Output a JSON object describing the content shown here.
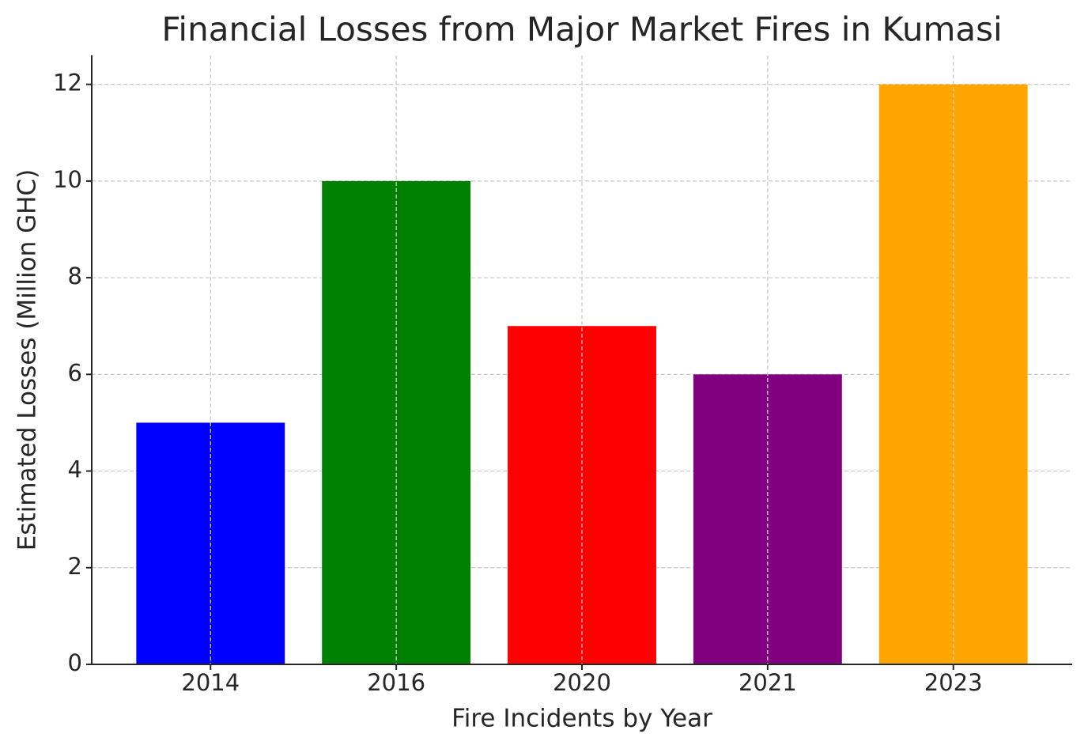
{
  "chart_data": {
    "type": "bar",
    "title": "Financial Losses from Major Market Fires in Kumasi",
    "x_label": "Fire Incidents by Year",
    "y_label": "Estimated Losses (Million GHC)",
    "categories": [
      "2014",
      "2016",
      "2020",
      "2021",
      "2023"
    ],
    "values": [
      5,
      10,
      7,
      6,
      12
    ],
    "colors": [
      "#0000ff",
      "#008000",
      "#ff0000",
      "#800080",
      "#ffa500"
    ],
    "ylim": [
      0,
      12.6
    ],
    "yticks": [
      0,
      2,
      4,
      6,
      8,
      10,
      12
    ],
    "grid": true
  }
}
